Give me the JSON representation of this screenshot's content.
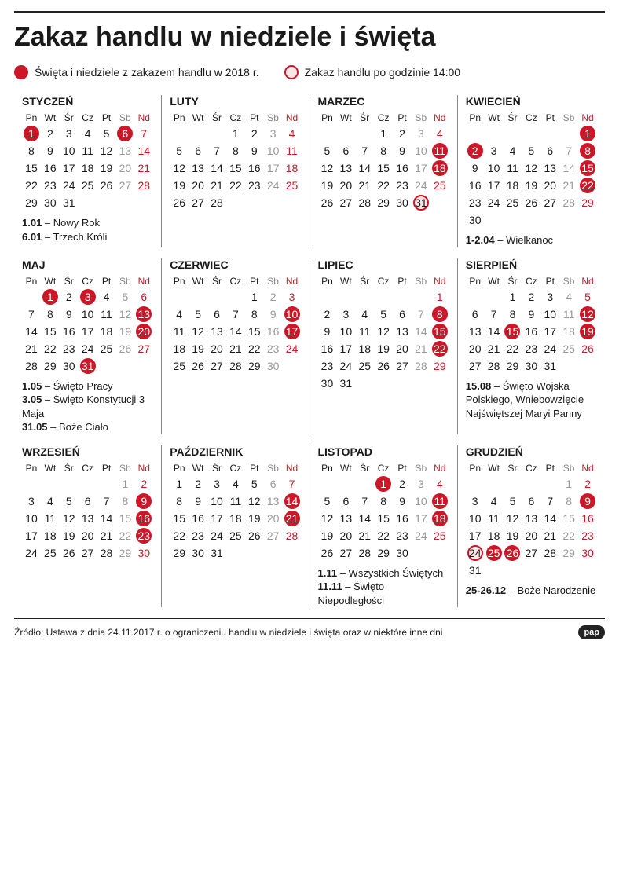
{
  "title": "Zakaz handlu w niedziele i święta",
  "legend": {
    "full": "Święta i niedziele z zakazem handlu w 2018 r.",
    "partial": "Zakaz handlu po godzinie 14:00"
  },
  "colors": {
    "ban": "#cb1727",
    "partial_fill": "#fbe5e7",
    "saturday": "#999",
    "text": "#1a1a1a"
  },
  "dow_labels": [
    "Pn",
    "Wt",
    "Śr",
    "Cz",
    "Pt",
    "Sb",
    "Nd"
  ],
  "months": [
    {
      "name": "STYCZEŃ",
      "start": 0,
      "len": 31,
      "ban": [
        1,
        6
      ],
      "part": [],
      "notes": "<b>1.01</b> – Nowy Rok<br><b>6.01</b> – Trzech Króli"
    },
    {
      "name": "LUTY",
      "start": 3,
      "len": 28,
      "ban": [],
      "part": [],
      "notes": ""
    },
    {
      "name": "MARZEC",
      "start": 3,
      "len": 31,
      "ban": [
        11,
        18
      ],
      "part": [
        31
      ],
      "notes": ""
    },
    {
      "name": "KWIECIEŃ",
      "start": 6,
      "len": 30,
      "ban": [
        1,
        2,
        8,
        15,
        22
      ],
      "part": [],
      "notes": "<b>1-2.04</b> – Wielkanoc"
    },
    {
      "name": "MAJ",
      "start": 1,
      "len": 31,
      "ban": [
        1,
        3,
        13,
        20,
        31
      ],
      "part": [],
      "notes": "<b>1.05</b> – Święto Pracy<br><b>3.05</b> – Święto Konstytucji 3 Maja<br><b>31.05</b> – Boże Ciało"
    },
    {
      "name": "CZERWIEC",
      "start": 4,
      "len": 30,
      "ban": [
        10,
        17
      ],
      "part": [],
      "notes": ""
    },
    {
      "name": "LIPIEC",
      "start": 6,
      "len": 31,
      "ban": [
        8,
        15,
        22
      ],
      "part": [],
      "notes": ""
    },
    {
      "name": "SIERPIEŃ",
      "start": 2,
      "len": 31,
      "ban": [
        12,
        15,
        19
      ],
      "part": [],
      "notes": "<b>15.08</b> – Święto Wojska Polskiego, Wniebowzięcie Najświętszej Maryi Panny"
    },
    {
      "name": "WRZESIEŃ",
      "start": 5,
      "len": 30,
      "ban": [
        9,
        16,
        23
      ],
      "part": [],
      "notes": ""
    },
    {
      "name": "PAŹDZIERNIK",
      "start": 0,
      "len": 31,
      "ban": [
        14,
        21
      ],
      "part": [],
      "notes": ""
    },
    {
      "name": "LISTOPAD",
      "start": 3,
      "len": 30,
      "ban": [
        1,
        11,
        18
      ],
      "part": [],
      "notes": "<b>1.11</b> – Wszystkich Świętych<br><b>11.11</b> – Święto Niepodległości"
    },
    {
      "name": "GRUDZIEŃ",
      "start": 5,
      "len": 31,
      "ban": [
        9,
        25,
        26
      ],
      "part": [
        24
      ],
      "notes": "<b>25-26.12</b> – Boże Narodzenie"
    }
  ],
  "source": "Źródło: Ustawa z dnia 24.11.2017 r. o ograniczeniu handlu w niedziele i święta oraz w niektóre inne dni",
  "logo": "pap"
}
